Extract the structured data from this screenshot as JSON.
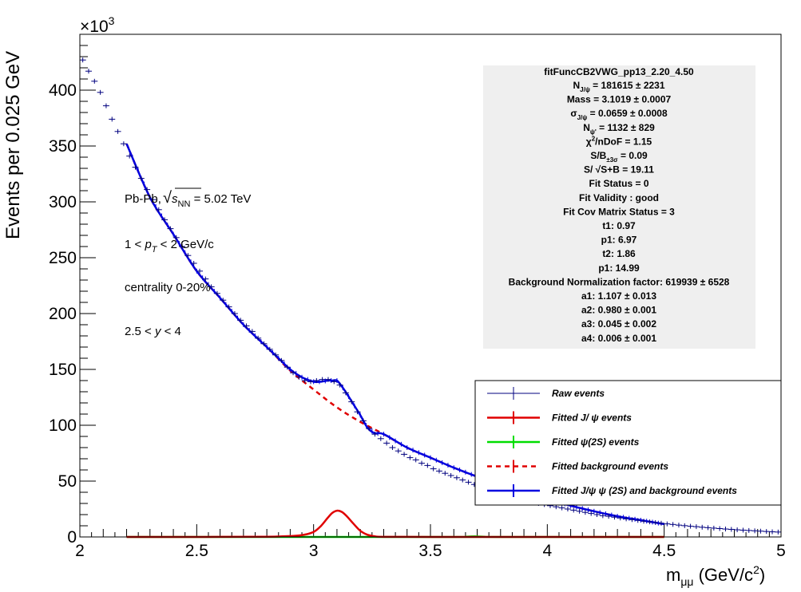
{
  "chart_data": {
    "type": "line",
    "xlabel": "m",
    "xlabel_sub": "μμ",
    "xlabel_unit_a": "(GeV/c",
    "xlabel_unit_sup": "2",
    "xlabel_unit_b": ")",
    "ylabel": "Events per 0.025 GeV",
    "y_multiplier": "×10",
    "y_multiplier_exp": "3",
    "xlim": [
      2,
      5
    ],
    "ylim": [
      0,
      450
    ],
    "x_ticks": [
      2,
      2.5,
      3,
      3.5,
      4,
      4.5,
      5
    ],
    "x_tick_labels": [
      "2",
      "2.5",
      "3",
      "3.5",
      "4",
      "4.5",
      "5"
    ],
    "y_ticks": [
      0,
      50,
      100,
      150,
      200,
      250,
      300,
      350,
      400
    ],
    "y_tick_labels": [
      "0",
      "50",
      "100",
      "150",
      "200",
      "250",
      "300",
      "350",
      "400"
    ],
    "series": [
      {
        "name": "Raw events",
        "style": "markers-errorbars",
        "color": "#00007f",
        "x": [
          2.0125,
          2.0375,
          2.0625,
          2.0875,
          2.1125,
          2.1375,
          2.1625,
          2.1875,
          2.2125,
          2.2375,
          2.2625,
          2.2875,
          2.3125,
          2.3375,
          2.3625,
          2.3875,
          2.4125,
          2.4375,
          2.4625,
          2.4875,
          2.5125,
          2.5375,
          2.5625,
          2.5875,
          2.6125,
          2.6375,
          2.6625,
          2.6875,
          2.7125,
          2.7375,
          2.7625,
          2.7875,
          2.8125,
          2.8375,
          2.8625,
          2.8875,
          2.9125,
          2.9375,
          2.9625,
          2.9875,
          3.0125,
          3.0375,
          3.0625,
          3.0875,
          3.1125,
          3.1375,
          3.1625,
          3.1875,
          3.2125,
          3.2375,
          3.2625,
          3.2875,
          3.3125,
          3.3375,
          3.3625,
          3.3875,
          3.4125,
          3.4375,
          3.4625,
          3.4875,
          3.5125,
          3.5375,
          3.5625,
          3.5875,
          3.6125,
          3.6375,
          3.6625,
          3.6875,
          3.7125,
          3.7375,
          3.7625,
          3.7875,
          3.8125,
          3.8375,
          3.8625,
          3.8875,
          3.9125,
          3.9375,
          3.9625,
          3.9875,
          4.0125,
          4.0375,
          4.0625,
          4.0875,
          4.1125,
          4.1375,
          4.1625,
          4.1875,
          4.2125,
          4.2375,
          4.2625,
          4.2875,
          4.3125,
          4.3375,
          4.3625,
          4.3875,
          4.4125,
          4.4375,
          4.4625,
          4.4875,
          4.5125,
          4.5375,
          4.5625,
          4.5875,
          4.6125,
          4.6375,
          4.6625,
          4.6875,
          4.7125,
          4.7375,
          4.7625,
          4.7875,
          4.8125,
          4.8375,
          4.8625,
          4.8875,
          4.9125,
          4.9375,
          4.9625,
          4.9875
        ],
        "y": [
          427,
          417,
          408,
          398,
          386,
          374,
          363,
          352,
          341,
          331,
          321,
          311,
          302,
          293,
          284,
          276,
          268,
          260,
          252,
          245,
          238,
          231,
          224,
          218,
          212,
          206,
          200,
          194,
          189,
          184,
          178,
          173,
          168,
          163,
          158,
          152,
          147,
          143,
          140,
          139,
          140,
          141,
          141,
          139,
          136,
          129,
          121,
          112,
          104,
          97,
          92,
          88,
          84,
          80,
          77,
          74,
          71,
          69,
          66,
          64,
          61,
          59,
          57,
          55,
          53,
          51,
          49,
          47,
          45,
          44,
          42,
          40,
          39,
          37,
          36,
          34,
          33,
          32,
          30,
          29,
          28,
          27,
          26,
          25,
          24,
          23,
          22,
          21,
          20,
          19,
          18.5,
          17.7,
          17,
          16.2,
          15.5,
          14.8,
          14.1,
          13.5,
          12.9,
          12.3,
          11.7,
          11.2,
          10.6,
          10.1,
          9.6,
          9.2,
          8.7,
          8.3,
          7.9,
          7.5,
          7.1,
          6.8,
          6.4,
          6.1,
          5.8,
          5.5,
          5.2,
          4.9,
          4.6,
          4.4
        ]
      },
      {
        "name": "Fitted J/ ψ events",
        "style": "line",
        "color": "#e00000",
        "x": [
          2.2,
          2.5,
          2.8,
          2.85,
          2.9,
          2.95,
          3.0,
          3.03,
          3.06,
          3.08,
          3.1,
          3.12,
          3.14,
          3.17,
          3.2,
          3.23,
          3.26,
          3.3,
          3.5,
          4.0,
          4.5
        ],
        "y": [
          0,
          0,
          0.2,
          0.4,
          0.8,
          1.6,
          4.5,
          9.5,
          17,
          21.5,
          23.5,
          22.5,
          19,
          12,
          5.5,
          2,
          0.6,
          0.1,
          0,
          0,
          0
        ]
      },
      {
        "name": "Fitted  ψ(2S) events",
        "style": "line",
        "color": "#00dd00",
        "x": [
          2.2,
          3.6,
          3.65,
          3.69,
          3.73,
          3.8,
          4.5
        ],
        "y": [
          0,
          0,
          0.2,
          0.5,
          0.2,
          0,
          0
        ]
      },
      {
        "name": "Fitted background events",
        "style": "dashed",
        "color": "#e00000",
        "x": [
          2.2,
          2.3,
          2.4,
          2.5,
          2.6,
          2.7,
          2.8,
          2.9,
          3.0,
          3.1,
          3.2,
          3.3,
          3.4,
          3.5,
          3.6,
          3.7,
          3.8,
          3.9,
          4.0,
          4.1,
          4.2,
          4.3,
          4.4,
          4.5
        ],
        "y": [
          352,
          304,
          271,
          238,
          214,
          190,
          170,
          149,
          132,
          116,
          103,
          92,
          80,
          71,
          62,
          54,
          47,
          40,
          34,
          28,
          23,
          18.5,
          15,
          11.5
        ]
      },
      {
        "name": "Fitted J/ψ  ψ (2S) and background events",
        "style": "line",
        "color": "#0000e0",
        "x": [
          2.2,
          2.3,
          2.4,
          2.5,
          2.6,
          2.7,
          2.8,
          2.85,
          2.9,
          2.95,
          3.0,
          3.03,
          3.06,
          3.08,
          3.1,
          3.12,
          3.14,
          3.17,
          3.2,
          3.23,
          3.26,
          3.3,
          3.4,
          3.5,
          3.6,
          3.7,
          3.8,
          3.9,
          4.0,
          4.1,
          4.2,
          4.3,
          4.4,
          4.5
        ],
        "y": [
          352,
          304,
          271,
          238,
          214,
          190,
          170,
          160,
          150,
          143,
          139,
          139,
          140,
          140,
          140,
          135,
          129,
          119,
          109,
          98,
          93,
          92,
          80,
          71,
          62,
          54,
          47,
          40,
          34,
          28,
          23,
          18.5,
          15,
          11.5
        ]
      }
    ],
    "legend_placement": "bottom-right",
    "fit_box": {
      "title": "fitFuncCB2VWG_pp13_2.20_4.50",
      "lines": [
        {
          "main": "N",
          "sub": "J/ψ",
          "rest": " = 181615 ± 2231"
        },
        {
          "main": "Mass = 3.1019 ± 0.0007",
          "sub": "",
          "rest": ""
        },
        {
          "main": "σ",
          "sub": "J/ψ",
          "rest": " = 0.0659 ± 0.0008"
        },
        {
          "main": "N",
          "sub": "ψ'",
          "rest": " = 1132 ± 829"
        },
        {
          "main": "χ",
          "sup": "2",
          "rest": "/nDoF = 1.15"
        },
        {
          "main": "S/B",
          "sub": "±3σ",
          "rest": " = 0.09"
        },
        {
          "main": "S/ √S+B = 19.11",
          "sub": "",
          "rest": ""
        },
        {
          "main": "Fit Status = 0",
          "sub": "",
          "rest": ""
        },
        {
          "main": "Fit Validity : good",
          "sub": "",
          "rest": ""
        },
        {
          "main": "Fit Cov Matrix Status = 3",
          "sub": "",
          "rest": ""
        },
        {
          "main": "t1: 0.97",
          "sub": "",
          "rest": ""
        },
        {
          "main": "p1: 6.97",
          "sub": "",
          "rest": ""
        },
        {
          "main": "t2: 1.86",
          "sub": "",
          "rest": ""
        },
        {
          "main": "p1: 14.99",
          "sub": "",
          "rest": ""
        },
        {
          "main": "Background Normalization factor: 619939 ± 6528",
          "sub": "",
          "rest": ""
        },
        {
          "main": "a1: 1.107 ± 0.013",
          "sub": "",
          "rest": ""
        },
        {
          "main": "a2: 0.980 ± 0.001",
          "sub": "",
          "rest": ""
        },
        {
          "main": "a3: 0.045 ± 0.002",
          "sub": "",
          "rest": ""
        },
        {
          "main": "a4: 0.006 ± 0.001",
          "sub": "",
          "rest": ""
        }
      ]
    },
    "annotations": {
      "system_a": "Pb-Pb, ",
      "sqrt_s": "s",
      "sqrt_s_sub": "NN",
      "system_b": " = 5.02 TeV",
      "pt_a": "1 < ",
      "pt_p": "p",
      "pt_sub": "T",
      "pt_b": " < 2 GeV/c",
      "centrality": "centrality 0-20%",
      "y_a": "2.5 < ",
      "y_y": "y",
      "y_b": " < 4"
    }
  },
  "colors": {
    "raw": "#00007f",
    "jpsi": "#e00000",
    "psi2s": "#00dd00",
    "background": "#e00000",
    "total": "#0000e0",
    "fit_box_fill": "#efefef"
  }
}
